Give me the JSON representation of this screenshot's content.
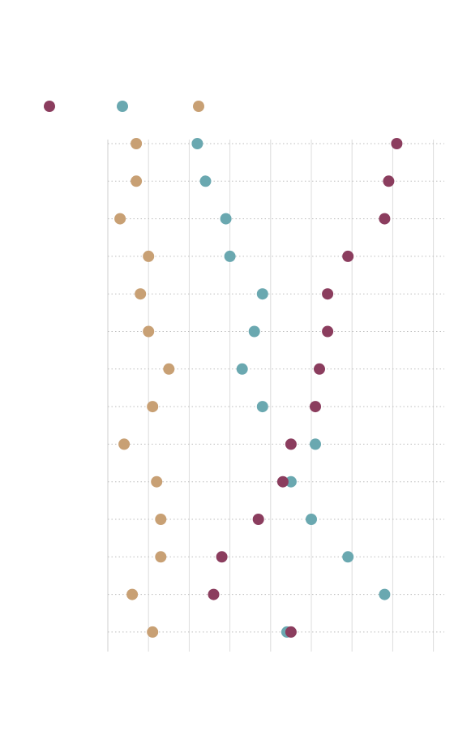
{
  "chart_data": {
    "type": "scatter",
    "style": "dot-plot",
    "title": "",
    "xlabel": "",
    "ylabel": "",
    "grid": true,
    "legend_position": "top-left",
    "xlim": [
      0,
      8.3
    ],
    "row_count": 14,
    "series": [
      {
        "name": "",
        "color": "#8b3d5e",
        "values": [
          7.1,
          6.9,
          6.8,
          5.9,
          5.4,
          5.4,
          5.2,
          5.1,
          4.5,
          4.3,
          3.7,
          2.8,
          2.6,
          4.5
        ]
      },
      {
        "name": "",
        "color": "#6aa8b0",
        "values": [
          2.2,
          2.4,
          2.9,
          3.0,
          3.8,
          3.6,
          3.3,
          3.8,
          5.1,
          4.5,
          5.0,
          5.9,
          6.8,
          4.4
        ]
      },
      {
        "name": "",
        "color": "#c8a074",
        "values": [
          0.7,
          0.7,
          0.3,
          1.0,
          0.8,
          1.0,
          1.5,
          1.1,
          0.4,
          1.2,
          1.3,
          1.3,
          0.6,
          1.1
        ]
      }
    ]
  }
}
